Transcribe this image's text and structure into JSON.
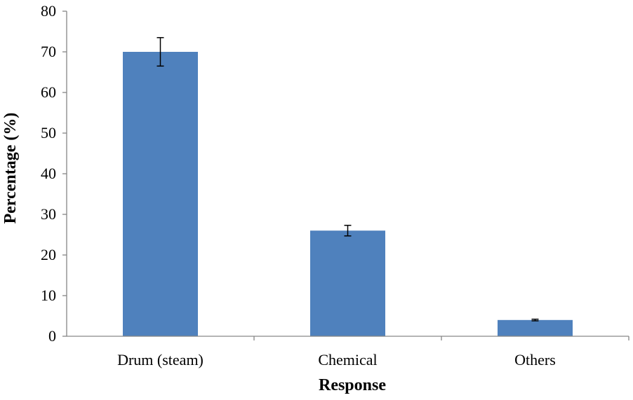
{
  "chart_data": {
    "type": "bar",
    "categories": [
      "Drum (steam)",
      "Chemical",
      "Others"
    ],
    "values": [
      70,
      26,
      4
    ],
    "errors": [
      3.5,
      1.3,
      0.2
    ],
    "xlabel": "Response",
    "ylabel": "Percentage (%)",
    "ylim": [
      0,
      80
    ],
    "yticks": [
      0,
      10,
      20,
      30,
      40,
      50,
      60,
      70,
      80
    ],
    "grid": false,
    "bar_color": "#4F81BD",
    "axis_color": "#868686",
    "error_bar_color": "#000000"
  }
}
